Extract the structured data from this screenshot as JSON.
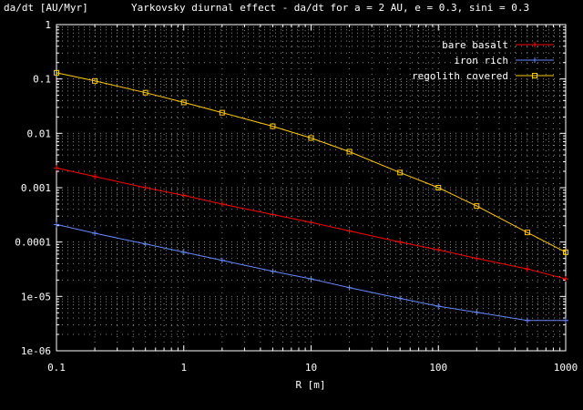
{
  "chart_data": {
    "type": "line",
    "title": "Yarkovsky diurnal effect - da/dt for a = 2 AU, e = 0.3, sini = 0.3",
    "ylabel": "da/dt [AU/Myr]",
    "xlabel": "R [m]",
    "xscale": "log",
    "yscale": "log",
    "xlim": [
      0.1,
      1000
    ],
    "ylim": [
      1e-06,
      1
    ],
    "grid": true,
    "legend_position": "top-right",
    "x_ticks": [
      "0.1",
      "1",
      "10",
      "100",
      "1000"
    ],
    "y_ticks": [
      "1e-06",
      "1e-05",
      "0.0001",
      "0.001",
      "0.01",
      "0.1",
      "1"
    ],
    "series": [
      {
        "name": "bare basalt",
        "color": "#ff0000",
        "marker": "plus",
        "x": [
          0.1,
          0.2,
          0.5,
          1,
          2,
          5,
          10,
          20,
          50,
          100,
          200,
          500,
          1000
        ],
        "y": [
          0.0023,
          0.0016,
          0.001,
          0.00072,
          0.0005,
          0.00032,
          0.00023,
          0.00016,
          0.0001,
          7.2e-05,
          5e-05,
          3.2e-05,
          2.1e-05
        ]
      },
      {
        "name": "iron rich",
        "color": "#6688ff",
        "marker": "plus",
        "x": [
          0.1,
          0.2,
          0.5,
          1,
          2,
          5,
          10,
          20,
          50,
          100,
          200,
          500,
          1000
        ],
        "y": [
          0.00021,
          0.000145,
          9.2e-05,
          6.5e-05,
          4.6e-05,
          2.9e-05,
          2.1e-05,
          1.45e-05,
          9.2e-06,
          6.6e-06,
          5.1e-06,
          3.6e-06,
          3.6e-06
        ]
      },
      {
        "name": "regolith covered",
        "color": "#ffcc00",
        "marker": "square",
        "x": [
          0.1,
          0.2,
          0.5,
          1,
          2,
          5,
          10,
          20,
          50,
          100,
          200,
          500,
          1000
        ],
        "y": [
          0.13,
          0.092,
          0.056,
          0.037,
          0.024,
          0.0135,
          0.0082,
          0.0046,
          0.0019,
          0.001,
          0.00046,
          0.00015,
          6.5e-05
        ]
      }
    ]
  }
}
